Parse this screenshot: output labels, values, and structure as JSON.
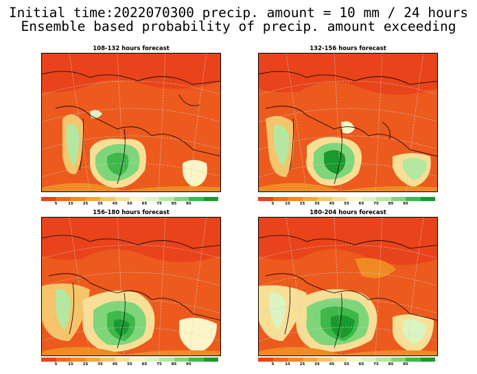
{
  "title_line1": "Initial time:2022070300 precip. amount = 10 mm / 24 hours",
  "title_line2": "Ensemble based probability of precip. amount exceeding",
  "panels": [
    {
      "title": "108-132 hours forecast"
    },
    {
      "title": "132-156 hours forecast"
    },
    {
      "title": "156-180 hours forecast"
    },
    {
      "title": "180-204 hours forecast"
    }
  ],
  "colorbar": {
    "colors": [
      "#e8431a",
      "#ee6a1e",
      "#f08a22",
      "#f4a640",
      "#f6c46a",
      "#f8df96",
      "#fbf5c8",
      "#dcf3c2",
      "#b4e8a0",
      "#7fd67a",
      "#3fb84a",
      "#1a9a2e"
    ],
    "tick_labels": [
      "5",
      "15",
      "25",
      "35",
      "45",
      "55",
      "65",
      "75",
      "85",
      "95"
    ]
  },
  "colors": {
    "high_prob_green": "#1a9a2e",
    "low_prob_red": "#e8431a",
    "coastline": "#000000",
    "graticule": "#cfcfcf"
  }
}
